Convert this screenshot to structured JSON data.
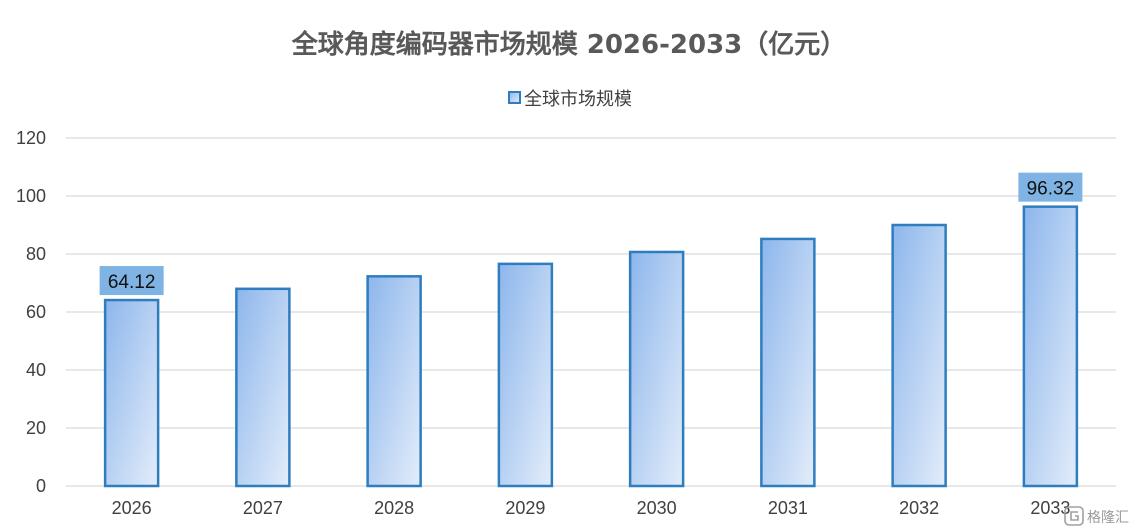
{
  "chart_data": {
    "type": "bar",
    "title": "全球角度编码器市场规模 2026-2033（亿元）",
    "categories": [
      "2026",
      "2027",
      "2028",
      "2029",
      "2030",
      "2031",
      "2032",
      "2033"
    ],
    "series": [
      {
        "name": "全球市场规模",
        "values": [
          64.12,
          68.0,
          72.3,
          76.6,
          80.7,
          85.2,
          90.0,
          96.32
        ]
      }
    ],
    "data_labels": [
      {
        "category": "2026",
        "text": "64.12"
      },
      {
        "category": "2033",
        "text": "96.32"
      }
    ],
    "ylim": [
      0,
      120
    ],
    "yticks": [
      0,
      20,
      40,
      60,
      80,
      100,
      120
    ],
    "grid": true,
    "legend_position": "top-center",
    "colors": {
      "bar_top": "#8db6ec",
      "bar_bottom": "#dde9f9",
      "bar_border": "#2e7ebf",
      "label_bg": "#7eb3e3",
      "grid": "#d9d9d9"
    }
  },
  "watermark": {
    "text": "格隆汇",
    "icon": "watermark-logo-icon"
  }
}
